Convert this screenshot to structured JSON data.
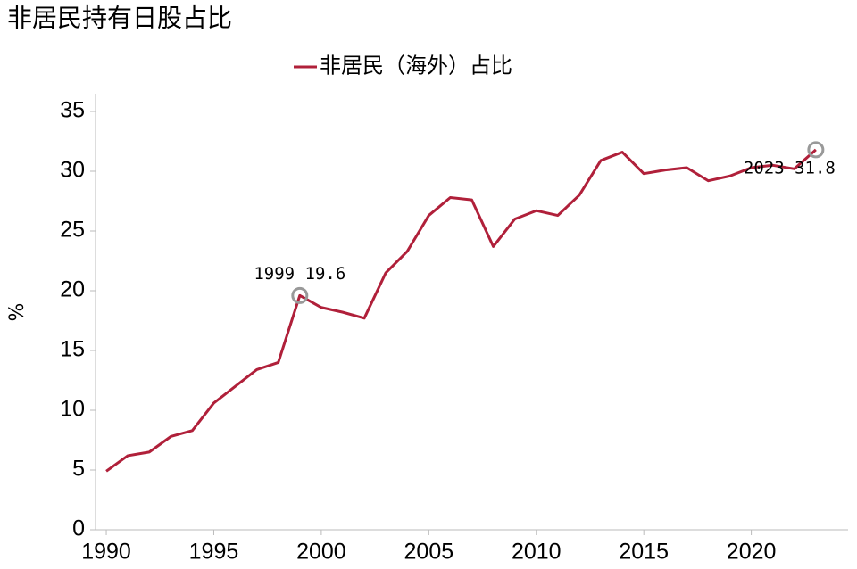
{
  "chart_data": {
    "type": "line",
    "title": "非居民持有日股占比",
    "ylabel": "%",
    "x": [
      1990,
      1991,
      1992,
      1993,
      1994,
      1995,
      1996,
      1997,
      1998,
      1999,
      2000,
      2001,
      2002,
      2003,
      2004,
      2005,
      2006,
      2007,
      2008,
      2009,
      2010,
      2011,
      2012,
      2013,
      2014,
      2015,
      2016,
      2017,
      2018,
      2019,
      2020,
      2021,
      2022,
      2023
    ],
    "series": [
      {
        "name": "非居民（海外）占比",
        "color": "#b0203a",
        "values": [
          4.9,
          6.2,
          6.5,
          7.8,
          8.3,
          10.6,
          12.0,
          13.4,
          14.0,
          19.6,
          18.6,
          18.2,
          17.7,
          21.5,
          23.3,
          26.3,
          27.8,
          27.6,
          23.7,
          26.0,
          26.7,
          26.3,
          28.0,
          30.9,
          31.6,
          29.8,
          30.1,
          30.3,
          29.2,
          29.6,
          30.3,
          30.5,
          30.2,
          31.8
        ]
      }
    ],
    "xlim": [
      1989.5,
      2024.5
    ],
    "xticks": [
      1990,
      1995,
      2000,
      2005,
      2010,
      2015,
      2020
    ],
    "ylim": [
      0,
      35
    ],
    "yticks": [
      0,
      5,
      10,
      15,
      20,
      25,
      30,
      35
    ],
    "annotations": [
      {
        "text": "1999 19.6",
        "x": 1999,
        "y": 19.6
      },
      {
        "text": "2023 31.8",
        "x": 2023,
        "y": 31.8
      }
    ]
  }
}
